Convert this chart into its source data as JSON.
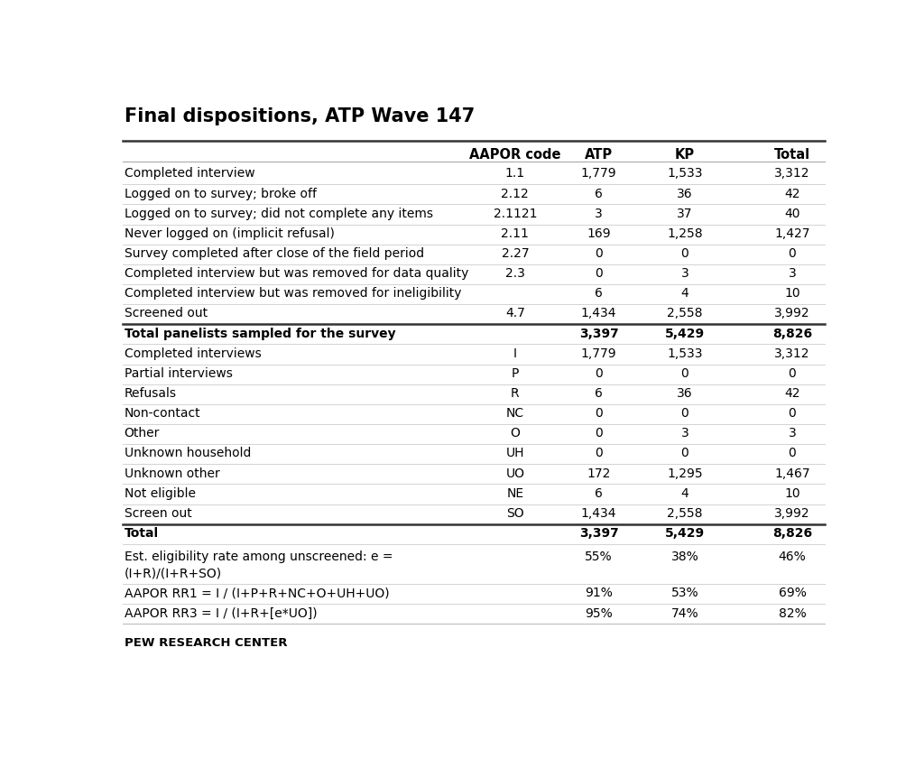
{
  "title": "Final dispositions, ATP Wave 147",
  "rows": [
    {
      "label": "Completed interview",
      "aapor": "1.1",
      "atp": "1,779",
      "kp": "1,533",
      "total": "3,312",
      "bold": false,
      "thick_top": false
    },
    {
      "label": "Logged on to survey; broke off",
      "aapor": "2.12",
      "atp": "6",
      "kp": "36",
      "total": "42",
      "bold": false,
      "thick_top": false
    },
    {
      "label": "Logged on to survey; did not complete any items",
      "aapor": "2.1121",
      "atp": "3",
      "kp": "37",
      "total": "40",
      "bold": false,
      "thick_top": false
    },
    {
      "label": "Never logged on (implicit refusal)",
      "aapor": "2.11",
      "atp": "169",
      "kp": "1,258",
      "total": "1,427",
      "bold": false,
      "thick_top": false
    },
    {
      "label": "Survey completed after close of the field period",
      "aapor": "2.27",
      "atp": "0",
      "kp": "0",
      "total": "0",
      "bold": false,
      "thick_top": false
    },
    {
      "label": "Completed interview but was removed for data quality",
      "aapor": "2.3",
      "atp": "0",
      "kp": "3",
      "total": "3",
      "bold": false,
      "thick_top": false
    },
    {
      "label": "Completed interview but was removed for ineligibility",
      "aapor": "",
      "atp": "6",
      "kp": "4",
      "total": "10",
      "bold": false,
      "thick_top": false
    },
    {
      "label": "Screened out",
      "aapor": "4.7",
      "atp": "1,434",
      "kp": "2,558",
      "total": "3,992",
      "bold": false,
      "thick_top": false
    },
    {
      "label": "Total panelists sampled for the survey",
      "aapor": "",
      "atp": "3,397",
      "kp": "5,429",
      "total": "8,826",
      "bold": true,
      "thick_top": true
    },
    {
      "label": "Completed interviews",
      "aapor": "I",
      "atp": "1,779",
      "kp": "1,533",
      "total": "3,312",
      "bold": false,
      "thick_top": false
    },
    {
      "label": "Partial interviews",
      "aapor": "P",
      "atp": "0",
      "kp": "0",
      "total": "0",
      "bold": false,
      "thick_top": false
    },
    {
      "label": "Refusals",
      "aapor": "R",
      "atp": "6",
      "kp": "36",
      "total": "42",
      "bold": false,
      "thick_top": false
    },
    {
      "label": "Non-contact",
      "aapor": "NC",
      "atp": "0",
      "kp": "0",
      "total": "0",
      "bold": false,
      "thick_top": false
    },
    {
      "label": "Other",
      "aapor": "O",
      "atp": "0",
      "kp": "3",
      "total": "3",
      "bold": false,
      "thick_top": false
    },
    {
      "label": "Unknown household",
      "aapor": "UH",
      "atp": "0",
      "kp": "0",
      "total": "0",
      "bold": false,
      "thick_top": false
    },
    {
      "label": "Unknown other",
      "aapor": "UO",
      "atp": "172",
      "kp": "1,295",
      "total": "1,467",
      "bold": false,
      "thick_top": false
    },
    {
      "label": "Not eligible",
      "aapor": "NE",
      "atp": "6",
      "kp": "4",
      "total": "10",
      "bold": false,
      "thick_top": false
    },
    {
      "label": "Screen out",
      "aapor": "SO",
      "atp": "1,434",
      "kp": "2,558",
      "total": "3,992",
      "bold": false,
      "thick_top": false
    },
    {
      "label": "Total",
      "aapor": "",
      "atp": "3,397",
      "kp": "5,429",
      "total": "8,826",
      "bold": true,
      "thick_top": false
    },
    {
      "label": "Est. eligibility rate among unscreened: e =\n(I+R)/(I+R+SO)",
      "aapor": "",
      "atp": "55%",
      "kp": "38%",
      "total": "46%",
      "bold": false,
      "thick_top": false
    },
    {
      "label": "AAPOR RR1 = I / (I+P+R+NC+O+UH+UO)",
      "aapor": "",
      "atp": "91%",
      "kp": "53%",
      "total": "69%",
      "bold": false,
      "thick_top": false
    },
    {
      "label": "AAPOR RR3 = I / (I+R+[e*UO])",
      "aapor": "",
      "atp": "95%",
      "kp": "74%",
      "total": "82%",
      "bold": false,
      "thick_top": false
    }
  ],
  "footer": "PEW RESEARCH CENTER",
  "bg_color": "#ffffff",
  "text_color": "#000000",
  "thick_border_rows": [
    8,
    18
  ],
  "title_fontsize": 15,
  "header_fontsize": 10.5,
  "cell_fontsize": 10.0,
  "footer_fontsize": 9.5,
  "col_x": {
    "label": 0.012,
    "aapor": 0.558,
    "atp": 0.675,
    "kp": 0.795,
    "total": 0.945
  }
}
